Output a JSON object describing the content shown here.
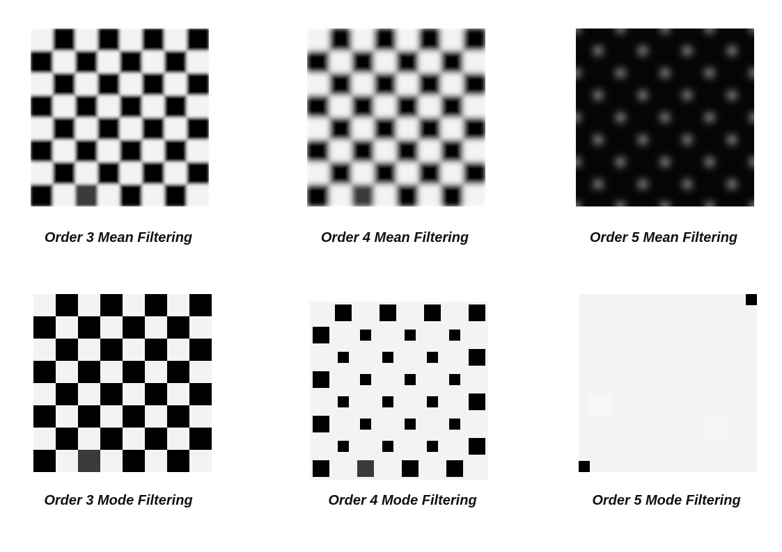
{
  "page": {
    "background": "#ffffff"
  },
  "colors": {
    "light": "#f3f3f3",
    "dark": "#000000",
    "gray": "#3a3a3a"
  },
  "panels": [
    {
      "id": "order3-mean",
      "caption": "Order 3 Mean Filtering",
      "filter": "mean",
      "order": 3
    },
    {
      "id": "order4-mean",
      "caption": "Order 4 Mean Filtering",
      "filter": "mean",
      "order": 4
    },
    {
      "id": "order5-mean",
      "caption": "Order 5 Mean Filtering",
      "filter": "mean",
      "order": 5
    },
    {
      "id": "order3-mode",
      "caption": "Order 3 Mode Filtering",
      "filter": "mode",
      "order": 3
    },
    {
      "id": "order4-mode",
      "caption": "Order 4 Mode Filtering",
      "filter": "mode",
      "order": 4
    },
    {
      "id": "order5-mode",
      "caption": "Order 5 Mode Filtering",
      "filter": "mode",
      "order": 5
    }
  ]
}
